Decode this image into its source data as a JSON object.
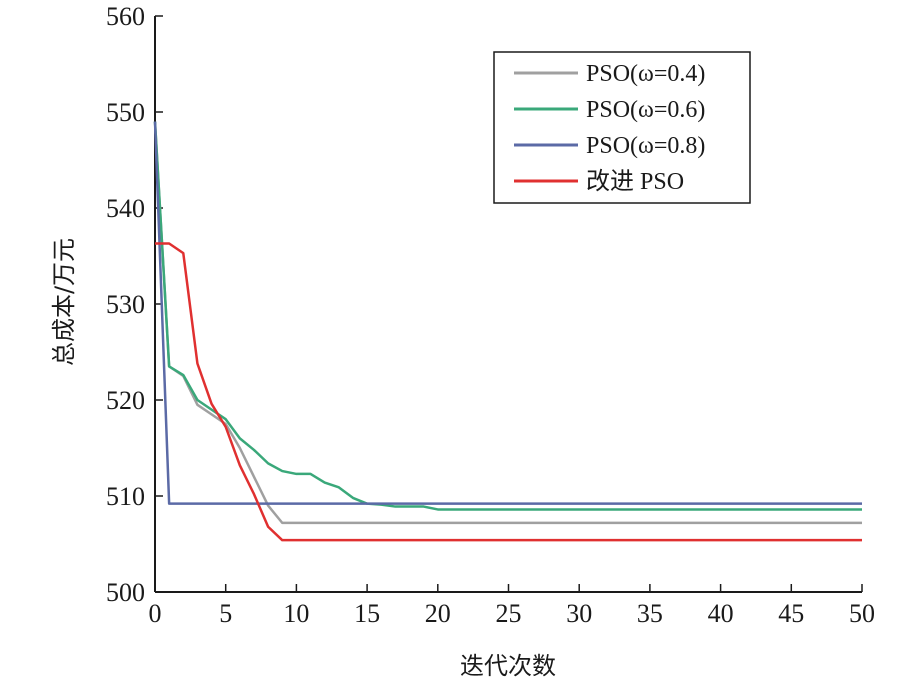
{
  "chart_data": {
    "type": "line",
    "title": "",
    "xlabel": "迭代次数",
    "ylabel": "总成本/万元",
    "xlim": [
      0,
      50
    ],
    "ylim": [
      500,
      560
    ],
    "xticks": [
      0,
      5,
      10,
      15,
      20,
      25,
      30,
      35,
      40,
      45,
      50
    ],
    "yticks": [
      500,
      510,
      520,
      530,
      540,
      550,
      560
    ],
    "grid": false,
    "legend_position": "top-right",
    "series": [
      {
        "name": "PSO(ω=0.4)",
        "color": "#a0a0a0",
        "x": [
          0,
          1,
          2,
          3,
          4,
          5,
          6,
          7,
          8,
          9,
          10,
          15,
          20,
          25,
          30,
          35,
          40,
          45,
          50
        ],
        "y": [
          549,
          523.5,
          522.5,
          519.5,
          518.5,
          517.5,
          515,
          512,
          509,
          507.2,
          507.2,
          507.2,
          507.2,
          507.2,
          507.2,
          507.2,
          507.2,
          507.2,
          507.2
        ]
      },
      {
        "name": "PSO(ω=0.6)",
        "color": "#3aa87a",
        "x": [
          0,
          1,
          2,
          3,
          4,
          5,
          6,
          7,
          8,
          9,
          10,
          11,
          12,
          13,
          14,
          15,
          16,
          17,
          18,
          19,
          20,
          25,
          30,
          35,
          40,
          45,
          50
        ],
        "y": [
          549,
          523.5,
          522.6,
          520,
          519,
          518,
          516,
          514.8,
          513.4,
          512.6,
          512.3,
          512.3,
          511.4,
          510.9,
          509.8,
          509.2,
          509.1,
          508.9,
          508.9,
          508.9,
          508.6,
          508.6,
          508.6,
          508.6,
          508.6,
          508.6,
          508.6
        ]
      },
      {
        "name": "PSO(ω=0.8)",
        "color": "#5b6aa6",
        "x": [
          0,
          1,
          5,
          10,
          15,
          20,
          25,
          30,
          35,
          40,
          45,
          50
        ],
        "y": [
          549,
          509.2,
          509.2,
          509.2,
          509.2,
          509.2,
          509.2,
          509.2,
          509.2,
          509.2,
          509.2,
          509.2
        ]
      },
      {
        "name": "改进 PSO",
        "color": "#e03030",
        "x": [
          0,
          1,
          2,
          3,
          4,
          5,
          6,
          7,
          8,
          9,
          10,
          15,
          20,
          25,
          30,
          35,
          40,
          45,
          50
        ],
        "y": [
          536.3,
          536.3,
          535.3,
          523.8,
          519.6,
          517.2,
          513.2,
          510.2,
          506.8,
          505.4,
          505.4,
          505.4,
          505.4,
          505.4,
          505.4,
          505.4,
          505.4,
          505.4,
          505.4
        ]
      }
    ]
  }
}
